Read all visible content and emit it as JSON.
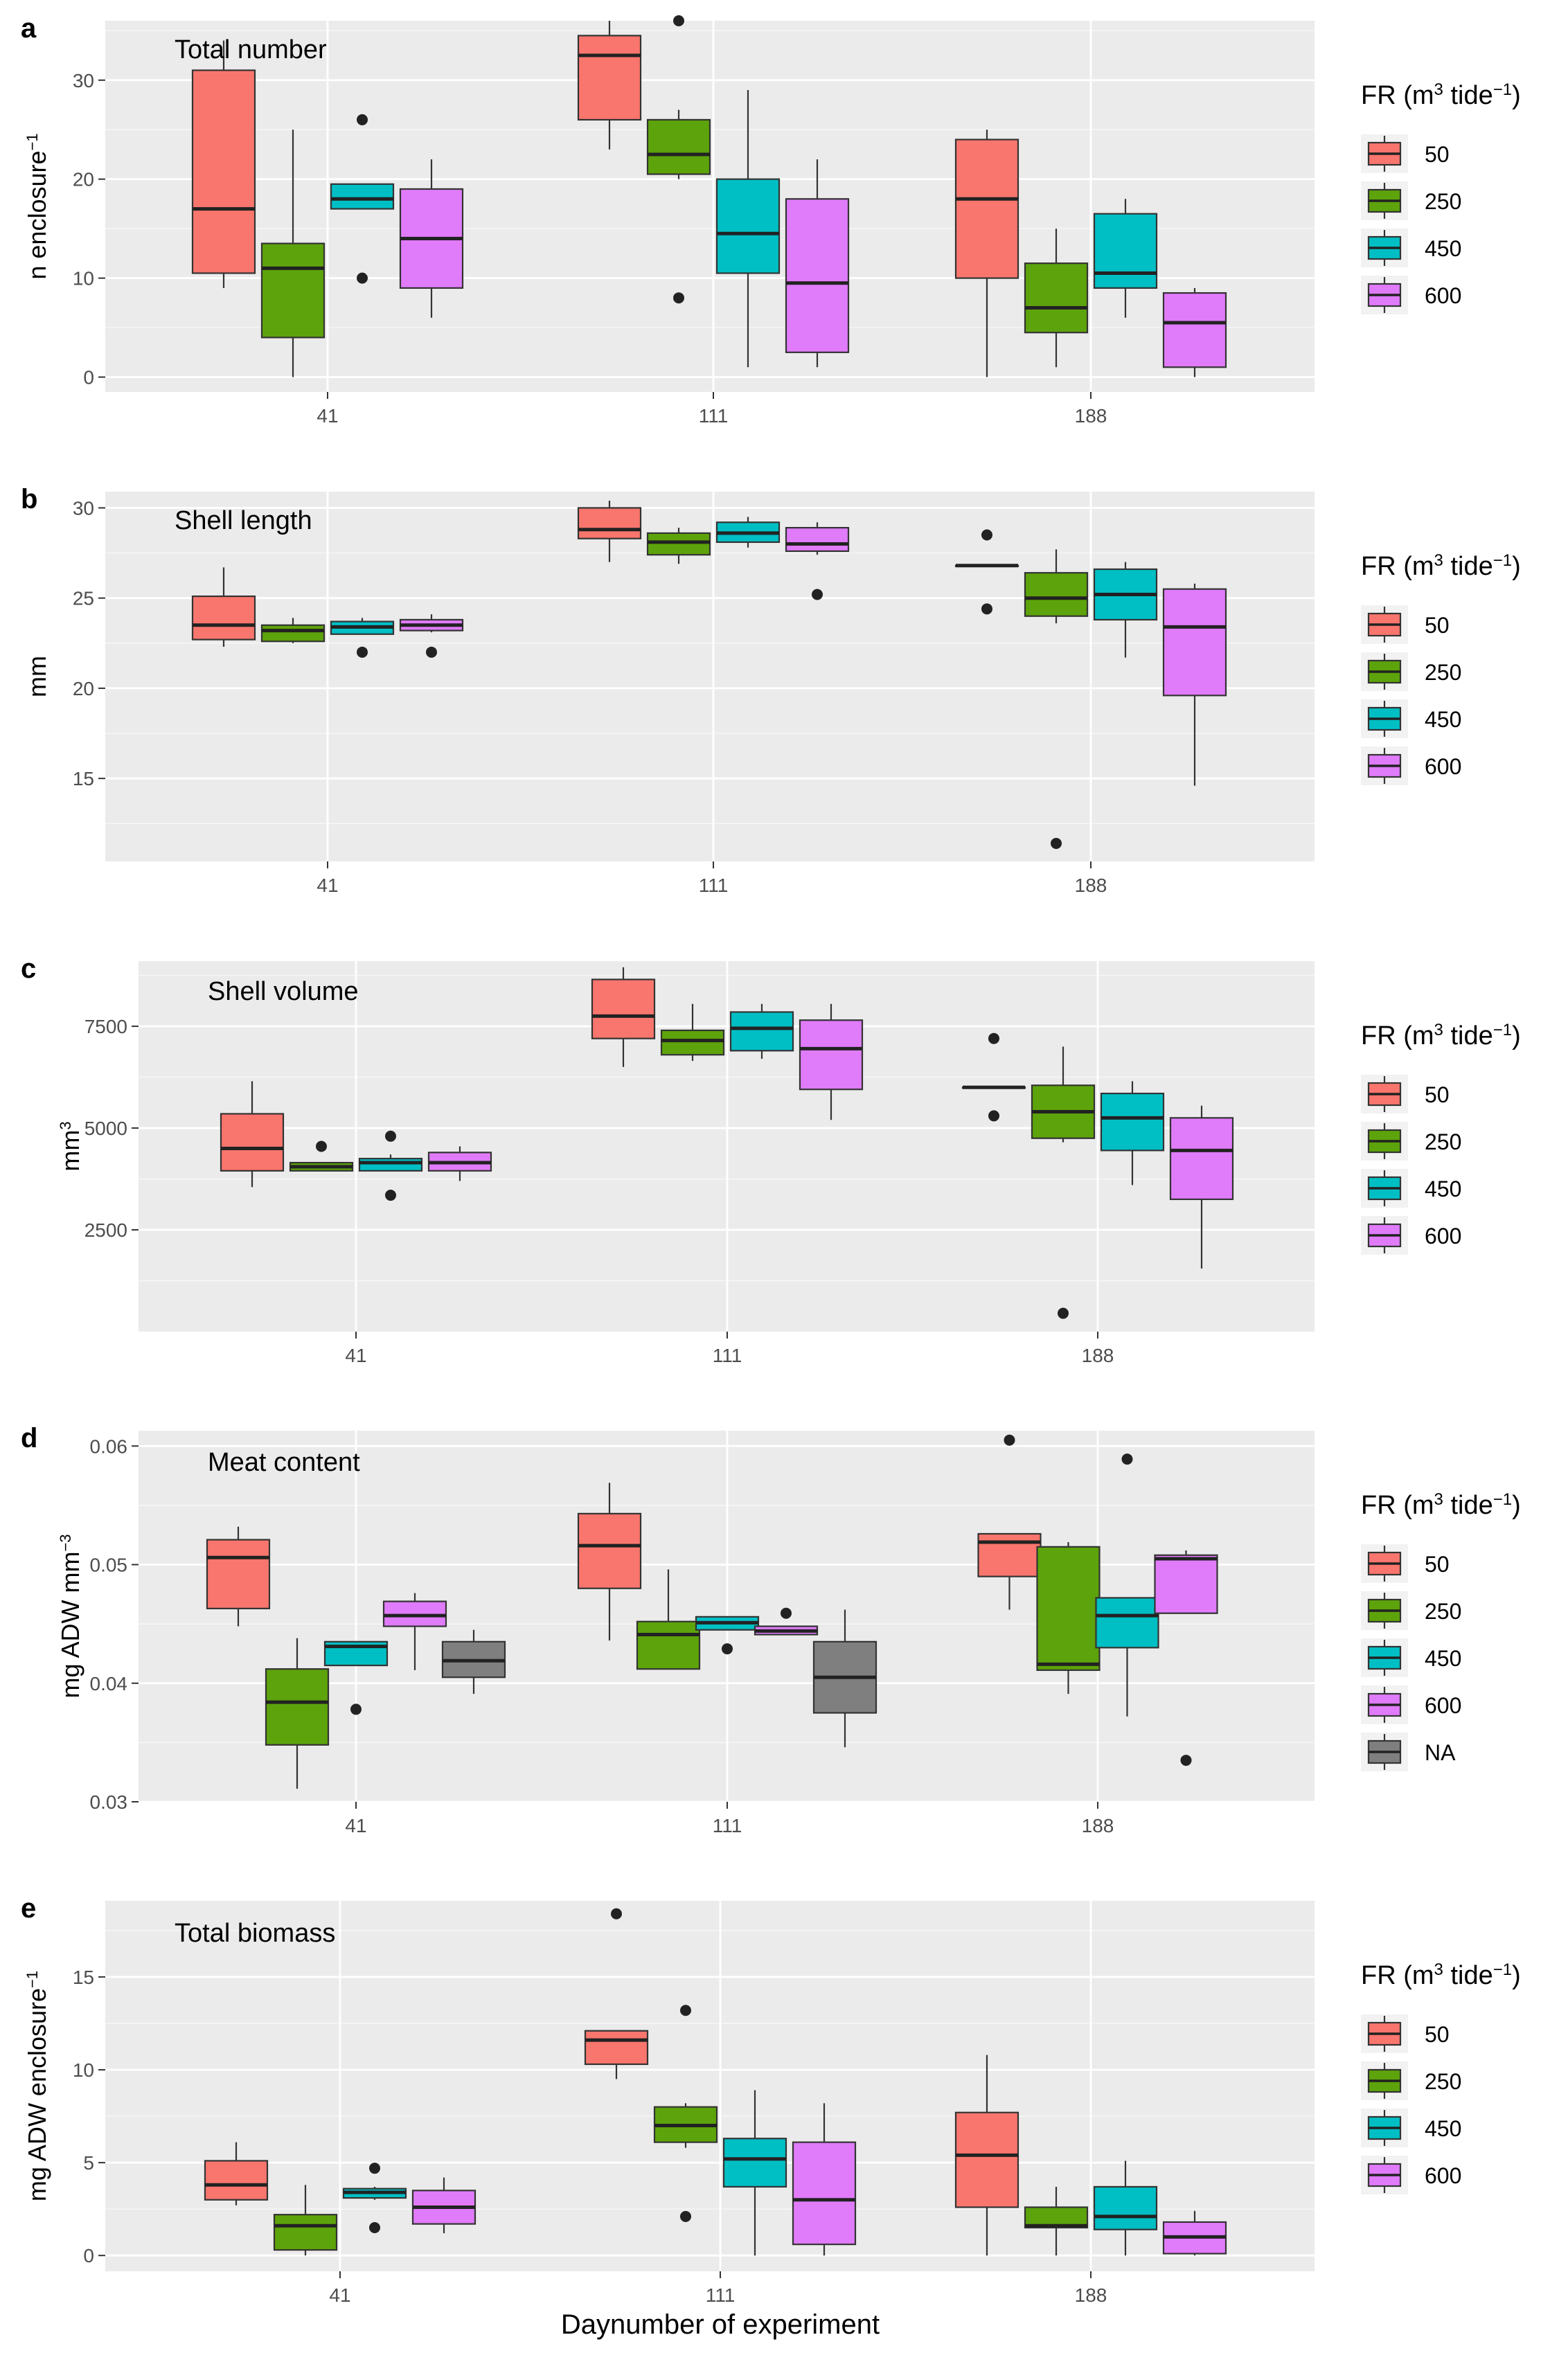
{
  "figure": {
    "xlabel": "Daynumber of experiment",
    "colors": {
      "50": "#F8766D",
      "250": "#5DA30B",
      "450": "#00BFC4",
      "600": "#E07BFA",
      "NA": "#7F7F7F"
    }
  },
  "chart_data": [
    {
      "type": "box",
      "panel": "a",
      "title": "Total number",
      "ylabel": "n enclosure⁻¹",
      "ylim": [
        -1.5,
        36
      ],
      "yticks": [
        "0",
        "10",
        "20",
        "30"
      ],
      "ytick_values": [
        0,
        10,
        20,
        30
      ],
      "categories": [
        "41",
        "111",
        "188"
      ],
      "legend": {
        "title": "FR (m³ tide⁻¹)",
        "entries": [
          "50",
          "250",
          "450",
          "600"
        ]
      },
      "groups": [
        {
          "day": "41",
          "boxes": [
            {
              "fr": "50",
              "min": 9,
              "q1": 10.5,
              "median": 17,
              "q3": 31,
              "max": 34,
              "outliers": []
            },
            {
              "fr": "250",
              "min": 0,
              "q1": 4,
              "median": 11,
              "q3": 13.5,
              "max": 25,
              "outliers": []
            },
            {
              "fr": "450",
              "min": 17,
              "q1": 17,
              "median": 18,
              "q3": 19.5,
              "max": 19.5,
              "outliers": [
                26,
                10
              ]
            },
            {
              "fr": "600",
              "min": 6,
              "q1": 9,
              "median": 14,
              "q3": 19,
              "max": 22,
              "outliers": []
            }
          ]
        },
        {
          "day": "111",
          "boxes": [
            {
              "fr": "50",
              "min": 23,
              "q1": 26,
              "median": 32.5,
              "q3": 34.5,
              "max": 36,
              "outliers": []
            },
            {
              "fr": "250",
              "min": 20,
              "q1": 20.5,
              "median": 22.5,
              "q3": 26,
              "max": 27,
              "outliers": [
                36,
                8
              ]
            },
            {
              "fr": "450",
              "min": 1,
              "q1": 10.5,
              "median": 14.5,
              "q3": 20,
              "max": 29,
              "outliers": []
            },
            {
              "fr": "600",
              "min": 1,
              "q1": 2.5,
              "median": 9.5,
              "q3": 18,
              "max": 22,
              "outliers": []
            }
          ]
        },
        {
          "day": "188",
          "boxes": [
            {
              "fr": "50",
              "min": 0,
              "q1": 10,
              "median": 18,
              "q3": 24,
              "max": 25,
              "outliers": []
            },
            {
              "fr": "250",
              "min": 1,
              "q1": 4.5,
              "median": 7,
              "q3": 11.5,
              "max": 15,
              "outliers": []
            },
            {
              "fr": "450",
              "min": 6,
              "q1": 9,
              "median": 10.5,
              "q3": 16.5,
              "max": 18,
              "outliers": []
            },
            {
              "fr": "600",
              "min": 0,
              "q1": 1,
              "median": 5.5,
              "q3": 8.5,
              "max": 9,
              "outliers": []
            }
          ]
        }
      ]
    },
    {
      "type": "box",
      "panel": "b",
      "title": "Shell length",
      "ylabel": "mm",
      "ylim": [
        10.4,
        30.9
      ],
      "yticks": [
        "15",
        "20",
        "25",
        "30"
      ],
      "ytick_values": [
        15,
        20,
        25,
        30
      ],
      "categories": [
        "41",
        "111",
        "188"
      ],
      "legend": {
        "title": "FR (m³ tide⁻¹)",
        "entries": [
          "50",
          "250",
          "450",
          "600"
        ]
      },
      "groups": [
        {
          "day": "41",
          "boxes": [
            {
              "fr": "50",
              "min": 22.3,
              "q1": 22.7,
              "median": 23.5,
              "q3": 25.1,
              "max": 26.7,
              "outliers": []
            },
            {
              "fr": "250",
              "min": 22.5,
              "q1": 22.6,
              "median": 23.2,
              "q3": 23.5,
              "max": 23.9,
              "outliers": []
            },
            {
              "fr": "450",
              "min": 23.0,
              "q1": 23.0,
              "median": 23.4,
              "q3": 23.7,
              "max": 23.9,
              "outliers": [
                22.0
              ]
            },
            {
              "fr": "600",
              "min": 23.1,
              "q1": 23.2,
              "median": 23.5,
              "q3": 23.8,
              "max": 24.1,
              "outliers": [
                22.0
              ]
            }
          ]
        },
        {
          "day": "111",
          "boxes": [
            {
              "fr": "50",
              "min": 27.0,
              "q1": 28.3,
              "median": 28.8,
              "q3": 30.0,
              "max": 30.4,
              "outliers": []
            },
            {
              "fr": "250",
              "min": 26.9,
              "q1": 27.4,
              "median": 28.1,
              "q3": 28.6,
              "max": 28.9,
              "outliers": []
            },
            {
              "fr": "450",
              "min": 27.8,
              "q1": 28.1,
              "median": 28.6,
              "q3": 29.2,
              "max": 29.5,
              "outliers": []
            },
            {
              "fr": "600",
              "min": 27.4,
              "q1": 27.6,
              "median": 28.0,
              "q3": 28.9,
              "max": 29.2,
              "outliers": [
                25.2
              ]
            }
          ]
        },
        {
          "day": "188",
          "boxes": [
            {
              "fr": "50",
              "min": 26.8,
              "q1": 26.8,
              "median": 26.8,
              "q3": 26.8,
              "max": 26.8,
              "outliers": [
                28.5,
                24.4
              ]
            },
            {
              "fr": "250",
              "min": 23.6,
              "q1": 24.0,
              "median": 25.0,
              "q3": 26.4,
              "max": 27.7,
              "outliers": [
                11.4
              ]
            },
            {
              "fr": "450",
              "min": 21.7,
              "q1": 23.8,
              "median": 25.2,
              "q3": 26.6,
              "max": 27.0,
              "outliers": []
            },
            {
              "fr": "600",
              "min": 14.6,
              "q1": 19.6,
              "median": 23.4,
              "q3": 25.5,
              "max": 25.8,
              "outliers": []
            }
          ]
        }
      ]
    },
    {
      "type": "box",
      "panel": "c",
      "title": "Shell volume",
      "ylabel": "mm³",
      "ylim": [
        0,
        9100
      ],
      "yticks": [
        "2500",
        "5000",
        "7500"
      ],
      "ytick_values": [
        2500,
        5000,
        7500
      ],
      "categories": [
        "41",
        "111",
        "188"
      ],
      "legend": {
        "title": "FR (m³ tide⁻¹)",
        "entries": [
          "50",
          "250",
          "450",
          "600"
        ]
      },
      "groups": [
        {
          "day": "41",
          "boxes": [
            {
              "fr": "50",
              "min": 3550,
              "q1": 3950,
              "median": 4500,
              "q3": 5350,
              "max": 6150,
              "outliers": []
            },
            {
              "fr": "250",
              "min": 3950,
              "q1": 3950,
              "median": 4050,
              "q3": 4150,
              "max": 4150,
              "outliers": [
                4550
              ]
            },
            {
              "fr": "450",
              "min": 3950,
              "q1": 3950,
              "median": 4150,
              "q3": 4250,
              "max": 4350,
              "outliers": [
                4800,
                3350
              ]
            },
            {
              "fr": "600",
              "min": 3700,
              "q1": 3950,
              "median": 4150,
              "q3": 4400,
              "max": 4550,
              "outliers": []
            }
          ]
        },
        {
          "day": "111",
          "boxes": [
            {
              "fr": "50",
              "min": 6500,
              "q1": 7200,
              "median": 7750,
              "q3": 8650,
              "max": 8950,
              "outliers": []
            },
            {
              "fr": "250",
              "min": 6650,
              "q1": 6800,
              "median": 7150,
              "q3": 7400,
              "max": 8050,
              "outliers": []
            },
            {
              "fr": "450",
              "min": 6700,
              "q1": 6900,
              "median": 7450,
              "q3": 7850,
              "max": 8050,
              "outliers": []
            },
            {
              "fr": "600",
              "min": 5200,
              "q1": 5950,
              "median": 6950,
              "q3": 7650,
              "max": 8050,
              "outliers": []
            }
          ]
        },
        {
          "day": "188",
          "boxes": [
            {
              "fr": "50",
              "min": 6000,
              "q1": 6000,
              "median": 6000,
              "q3": 6000,
              "max": 6000,
              "outliers": [
                7200,
                5300
              ]
            },
            {
              "fr": "250",
              "min": 4650,
              "q1": 4750,
              "median": 5400,
              "q3": 6050,
              "max": 7000,
              "outliers": [
                450
              ]
            },
            {
              "fr": "450",
              "min": 3600,
              "q1": 4450,
              "median": 5250,
              "q3": 5850,
              "max": 6150,
              "outliers": []
            },
            {
              "fr": "600",
              "min": 1550,
              "q1": 3250,
              "median": 4450,
              "q3": 5250,
              "max": 5550,
              "outliers": []
            }
          ]
        }
      ]
    },
    {
      "type": "box",
      "panel": "d",
      "title": "Meat content",
      "ylabel": "mg ADW mm⁻³",
      "ylim": [
        0.03,
        0.0613
      ],
      "yticks": [
        "0.03",
        "0.04",
        "0.05",
        "0.06"
      ],
      "ytick_values": [
        0.03,
        0.04,
        0.05,
        0.06
      ],
      "categories": [
        "41",
        "111",
        "188"
      ],
      "legend": {
        "title": "FR (m³ tide⁻¹)",
        "entries": [
          "50",
          "250",
          "450",
          "600",
          "NA"
        ]
      },
      "groups": [
        {
          "day": "41",
          "boxes": [
            {
              "fr": "50",
              "min": 0.0448,
              "q1": 0.0463,
              "median": 0.0506,
              "q3": 0.0521,
              "max": 0.0532,
              "outliers": []
            },
            {
              "fr": "250",
              "min": 0.0311,
              "q1": 0.0348,
              "median": 0.0384,
              "q3": 0.0412,
              "max": 0.0438,
              "outliers": []
            },
            {
              "fr": "450",
              "min": 0.0415,
              "q1": 0.0415,
              "median": 0.0431,
              "q3": 0.0435,
              "max": 0.0435,
              "outliers": [
                0.0378
              ]
            },
            {
              "fr": "600",
              "min": 0.0411,
              "q1": 0.0448,
              "median": 0.0457,
              "q3": 0.0469,
              "max": 0.0476,
              "outliers": []
            },
            {
              "fr": "NA",
              "min": 0.0391,
              "q1": 0.0405,
              "median": 0.0419,
              "q3": 0.0435,
              "max": 0.0445,
              "outliers": []
            }
          ]
        },
        {
          "day": "111",
          "boxes": [
            {
              "fr": "50",
              "min": 0.0436,
              "q1": 0.048,
              "median": 0.0516,
              "q3": 0.0543,
              "max": 0.0569,
              "outliers": []
            },
            {
              "fr": "250",
              "min": 0.0412,
              "q1": 0.0412,
              "median": 0.0441,
              "q3": 0.0452,
              "max": 0.0496,
              "outliers": []
            },
            {
              "fr": "450",
              "min": 0.0445,
              "q1": 0.0445,
              "median": 0.0451,
              "q3": 0.0456,
              "max": 0.0456,
              "outliers": [
                0.0429
              ]
            },
            {
              "fr": "600",
              "min": 0.0441,
              "q1": 0.0441,
              "median": 0.0444,
              "q3": 0.0448,
              "max": 0.0448,
              "outliers": [
                0.0459
              ]
            },
            {
              "fr": "NA",
              "min": 0.0346,
              "q1": 0.0375,
              "median": 0.0405,
              "q3": 0.0435,
              "max": 0.0462,
              "outliers": []
            }
          ]
        },
        {
          "day": "188",
          "boxes": [
            {
              "fr": "50",
              "min": 0.0462,
              "q1": 0.049,
              "median": 0.0519,
              "q3": 0.0526,
              "max": 0.0526,
              "outliers": [
                0.0605
              ]
            },
            {
              "fr": "250",
              "min": 0.0391,
              "q1": 0.0411,
              "median": 0.0416,
              "q3": 0.0515,
              "max": 0.0519,
              "outliers": []
            },
            {
              "fr": "450",
              "min": 0.0372,
              "q1": 0.043,
              "median": 0.0457,
              "q3": 0.0472,
              "max": 0.0472,
              "outliers": [
                0.0589
              ]
            },
            {
              "fr": "600",
              "min": 0.0459,
              "q1": 0.0459,
              "median": 0.0505,
              "q3": 0.0508,
              "max": 0.0512,
              "outliers": [
                0.0335
              ]
            }
          ]
        }
      ]
    },
    {
      "type": "box",
      "panel": "e",
      "title": "Total biomass",
      "ylabel": "mg ADW enclosure⁻¹",
      "ylim": [
        -0.85,
        19.1
      ],
      "yticks": [
        "0",
        "5",
        "10",
        "15"
      ],
      "ytick_values": [
        0,
        5,
        10,
        15
      ],
      "categories": [
        "41",
        "111",
        "188"
      ],
      "legend": {
        "title": "FR (m³ tide⁻¹)",
        "entries": [
          "50",
          "250",
          "450",
          "600"
        ]
      },
      "groups": [
        {
          "day": "41",
          "boxes": [
            {
              "fr": "50",
              "min": 2.7,
              "q1": 3.0,
              "median": 3.8,
              "q3": 5.1,
              "max": 6.1,
              "outliers": []
            },
            {
              "fr": "250",
              "min": 0.0,
              "q1": 0.3,
              "median": 1.6,
              "q3": 2.2,
              "max": 3.8,
              "outliers": []
            },
            {
              "fr": "450",
              "min": 3.0,
              "q1": 3.1,
              "median": 3.4,
              "q3": 3.6,
              "max": 3.7,
              "outliers": [
                4.7,
                1.5
              ]
            },
            {
              "fr": "600",
              "min": 1.2,
              "q1": 1.7,
              "median": 2.6,
              "q3": 3.5,
              "max": 4.2,
              "outliers": []
            }
          ]
        },
        {
          "day": "111",
          "boxes": [
            {
              "fr": "50",
              "min": 9.5,
              "q1": 10.3,
              "median": 11.6,
              "q3": 12.1,
              "max": 12.1,
              "outliers": [
                18.4
              ]
            },
            {
              "fr": "250",
              "min": 5.8,
              "q1": 6.1,
              "median": 7.0,
              "q3": 8.0,
              "max": 8.2,
              "outliers": [
                13.2,
                2.1
              ]
            },
            {
              "fr": "450",
              "min": 0.0,
              "q1": 3.7,
              "median": 5.2,
              "q3": 6.3,
              "max": 8.9,
              "outliers": []
            },
            {
              "fr": "600",
              "min": 0.0,
              "q1": 0.6,
              "median": 3.0,
              "q3": 6.1,
              "max": 8.2,
              "outliers": []
            }
          ]
        },
        {
          "day": "188",
          "boxes": [
            {
              "fr": "50",
              "min": 0.0,
              "q1": 2.6,
              "median": 5.4,
              "q3": 7.7,
              "max": 10.8,
              "outliers": []
            },
            {
              "fr": "250",
              "min": 0.0,
              "q1": 1.5,
              "median": 1.6,
              "q3": 2.6,
              "max": 3.7,
              "outliers": []
            },
            {
              "fr": "450",
              "min": 0.0,
              "q1": 1.4,
              "median": 2.1,
              "q3": 3.7,
              "max": 5.1,
              "outliers": []
            },
            {
              "fr": "600",
              "min": 0.0,
              "q1": 0.1,
              "median": 1.0,
              "q3": 1.8,
              "max": 2.4,
              "outliers": []
            }
          ]
        }
      ]
    }
  ]
}
